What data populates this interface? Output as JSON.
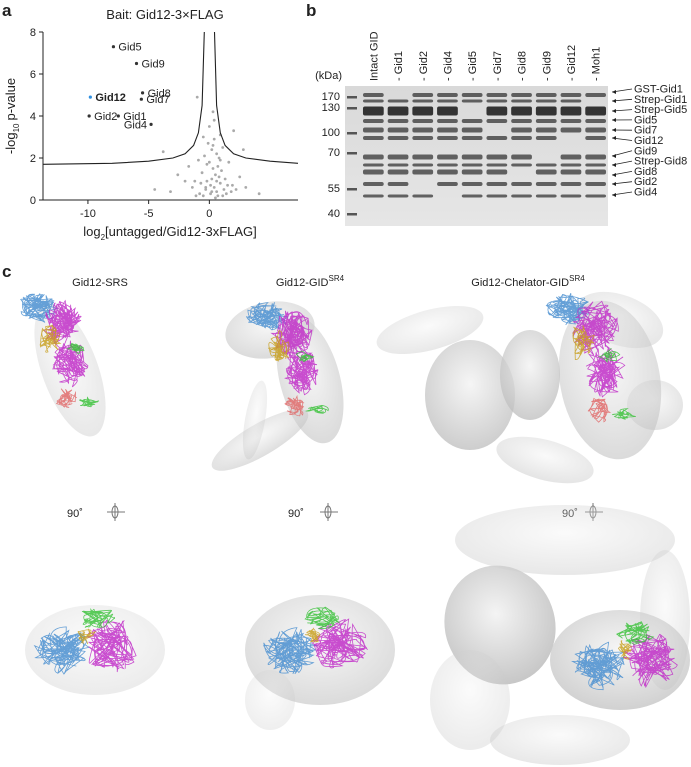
{
  "chart_data": {
    "type": "scatter",
    "panel": "a",
    "title": "Bait: Gid12-3×FLAG",
    "x_label": [
      "log",
      "2",
      "[untagged/Gid12-3xFLAG]"
    ],
    "y_label": [
      "-log",
      "10",
      "p-value"
    ],
    "xlim": [
      -13.7,
      7.3
    ],
    "ylim": [
      0,
      8
    ],
    "xticks": [
      -10,
      -5,
      0
    ],
    "yticks": [
      0,
      2,
      4,
      6,
      8
    ],
    "points": {
      "color": "#aaaaaa",
      "x": [
        -0.5,
        -0.3,
        0.1,
        0.4,
        0.6,
        0.9,
        1.2,
        -0.8,
        -1.1,
        0.2,
        0.5,
        0.8,
        -0.2,
        0.3,
        1.5,
        1.8,
        2.2,
        -1.4,
        -0.6,
        0.0,
        0.7,
        1.0,
        1.3,
        -0.4,
        0.2,
        0.6,
        0.9,
        -0.1,
        0.4,
        1.1,
        2.5,
        3.0,
        -2.0,
        -2.6,
        -3.2,
        -1.7,
        1.6,
        2.0,
        0.3,
        -0.7,
        0.5,
        0.1,
        -0.2,
        0.8,
        1.4,
        -0.9,
        0.6,
        0.2,
        -0.3,
        1.9,
        4.1,
        -4.5,
        0.4,
        -0.5,
        0.9,
        1.1,
        -1.2,
        0.7,
        0.0,
        0.3,
        2.8,
        -3.8,
        -1.0
      ],
      "y": [
        0.2,
        0.5,
        0.3,
        0.6,
        0.4,
        0.8,
        0.5,
        0.3,
        0.2,
        1.0,
        1.2,
        1.1,
        0.9,
        1.5,
        0.7,
        0.4,
        0.5,
        0.6,
        1.3,
        1.8,
        1.6,
        1.4,
        1.0,
        2.1,
        2.4,
        2.2,
        1.9,
        2.7,
        2.9,
        2.5,
        1.1,
        0.6,
        0.9,
        1.2,
        0.4,
        1.6,
        1.8,
        3.3,
        2.6,
        0.8,
        0.1,
        0.7,
        1.7,
        2.0,
        0.3,
        1.9,
        0.9,
        0.4,
        0.6,
        0.7,
        0.3,
        0.5,
        3.8,
        3.0,
        3.1,
        0.2,
        0.9,
        0.2,
        3.5,
        4.2,
        2.4,
        2.3,
        4.9
      ]
    },
    "hits": {
      "labels": [
        "Gid5",
        "Gid9",
        "Gid8",
        "Gid7",
        "Gid12",
        "Gid2",
        "Gid1",
        "Gid4"
      ],
      "x": [
        -7.9,
        -6.0,
        -5.5,
        -5.6,
        -9.8,
        -9.9,
        -7.5,
        -4.8
      ],
      "y": [
        7.3,
        6.5,
        5.1,
        4.8,
        4.9,
        4.0,
        4.0,
        3.6
      ],
      "colors": [
        "#333333",
        "#333333",
        "#333333",
        "#333333",
        "#2f8fe0",
        "#333333",
        "#333333",
        "#333333"
      ]
    },
    "threshold": {
      "color": "#222222",
      "x": [
        -13.7,
        -8,
        -5,
        -3,
        -2,
        -1.3,
        -0.9,
        -0.6,
        -0.42,
        null,
        0.42,
        0.6,
        0.9,
        1.3,
        2,
        3,
        5,
        7.3
      ],
      "y": [
        1.7,
        1.75,
        1.85,
        2.0,
        2.2,
        2.6,
        3.2,
        4.5,
        8,
        null,
        8,
        4.5,
        3.2,
        2.6,
        2.2,
        2.0,
        1.85,
        1.75
      ]
    }
  },
  "gel": {
    "panel": "b",
    "unit": "(kDa)",
    "markers": [
      "170",
      "130",
      "100",
      "70",
      "55",
      "40"
    ],
    "lanes": [
      {
        "label": "Intact GID",
        "color": "#222222"
      },
      {
        "label": "- Gid1",
        "color": "#222222"
      },
      {
        "label": "- Gid2",
        "color": "#222222"
      },
      {
        "label": "- Gid4",
        "color": "#222222"
      },
      {
        "label": "- Gid5",
        "color": "#222222"
      },
      {
        "label": "- Gid7",
        "color": "#222222"
      },
      {
        "label": "- Gid8",
        "color": "#222222"
      },
      {
        "label": "- Gid9",
        "color": "#222222"
      },
      {
        "label": "- Gid12",
        "color": "#2f8fe0"
      },
      {
        "label": "- Moh1",
        "color": "#222222"
      }
    ],
    "bands": [
      "GST-Gid1",
      "Strep-Gid1",
      "Strep-Gid5",
      "Gid5",
      "Gid7",
      "Gid12",
      "Gid9",
      "Strep-Gid8",
      "Gid8",
      "Gid2",
      "Gid4"
    ]
  },
  "structures": {
    "panel": "c",
    "items": [
      {
        "name": "Gid12-SRS",
        "rotation": "90˚"
      },
      {
        "name": "Gid12-GID",
        "superscript": "SR4",
        "rotation": "90˚"
      },
      {
        "name": "Gid12-Chelator-GID",
        "superscript": "SR4",
        "rotation": "90˚"
      }
    ]
  }
}
